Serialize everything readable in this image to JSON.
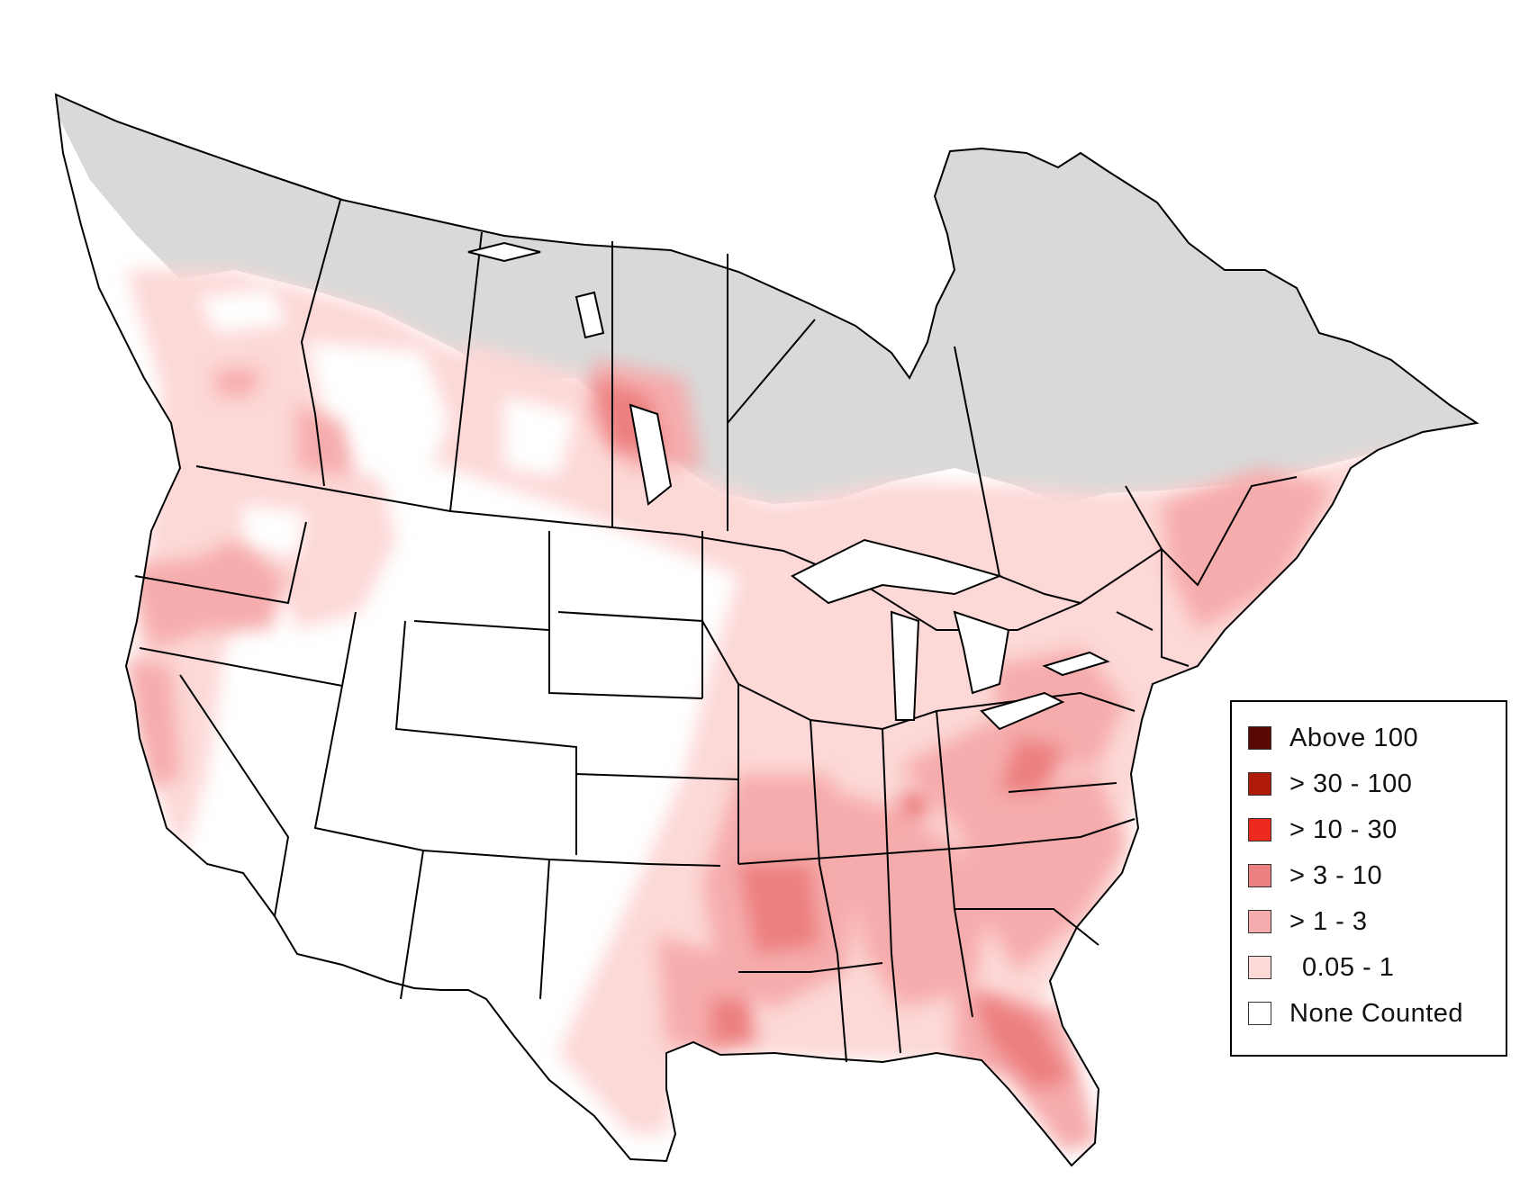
{
  "map": {
    "colors": {
      "outside_range": "#d9d9d9",
      "boundary_stroke": "#000000",
      "background": "#ffffff"
    }
  },
  "legend": {
    "items": [
      {
        "label": "Above 100",
        "color": "#5a0a05"
      },
      {
        "label": "> 30 - 100",
        "color": "#b01a0a"
      },
      {
        "label": "> 10 - 30",
        "color": "#ee2a1e"
      },
      {
        "label": "> 3 - 10",
        "color": "#ec7f7f"
      },
      {
        "label": "> 1 - 3",
        "color": "#f6acac"
      },
      {
        "label": "0.05 - 1",
        "color": "#fcd8d6"
      },
      {
        "label": "None Counted",
        "color": "#ffffff"
      }
    ]
  }
}
